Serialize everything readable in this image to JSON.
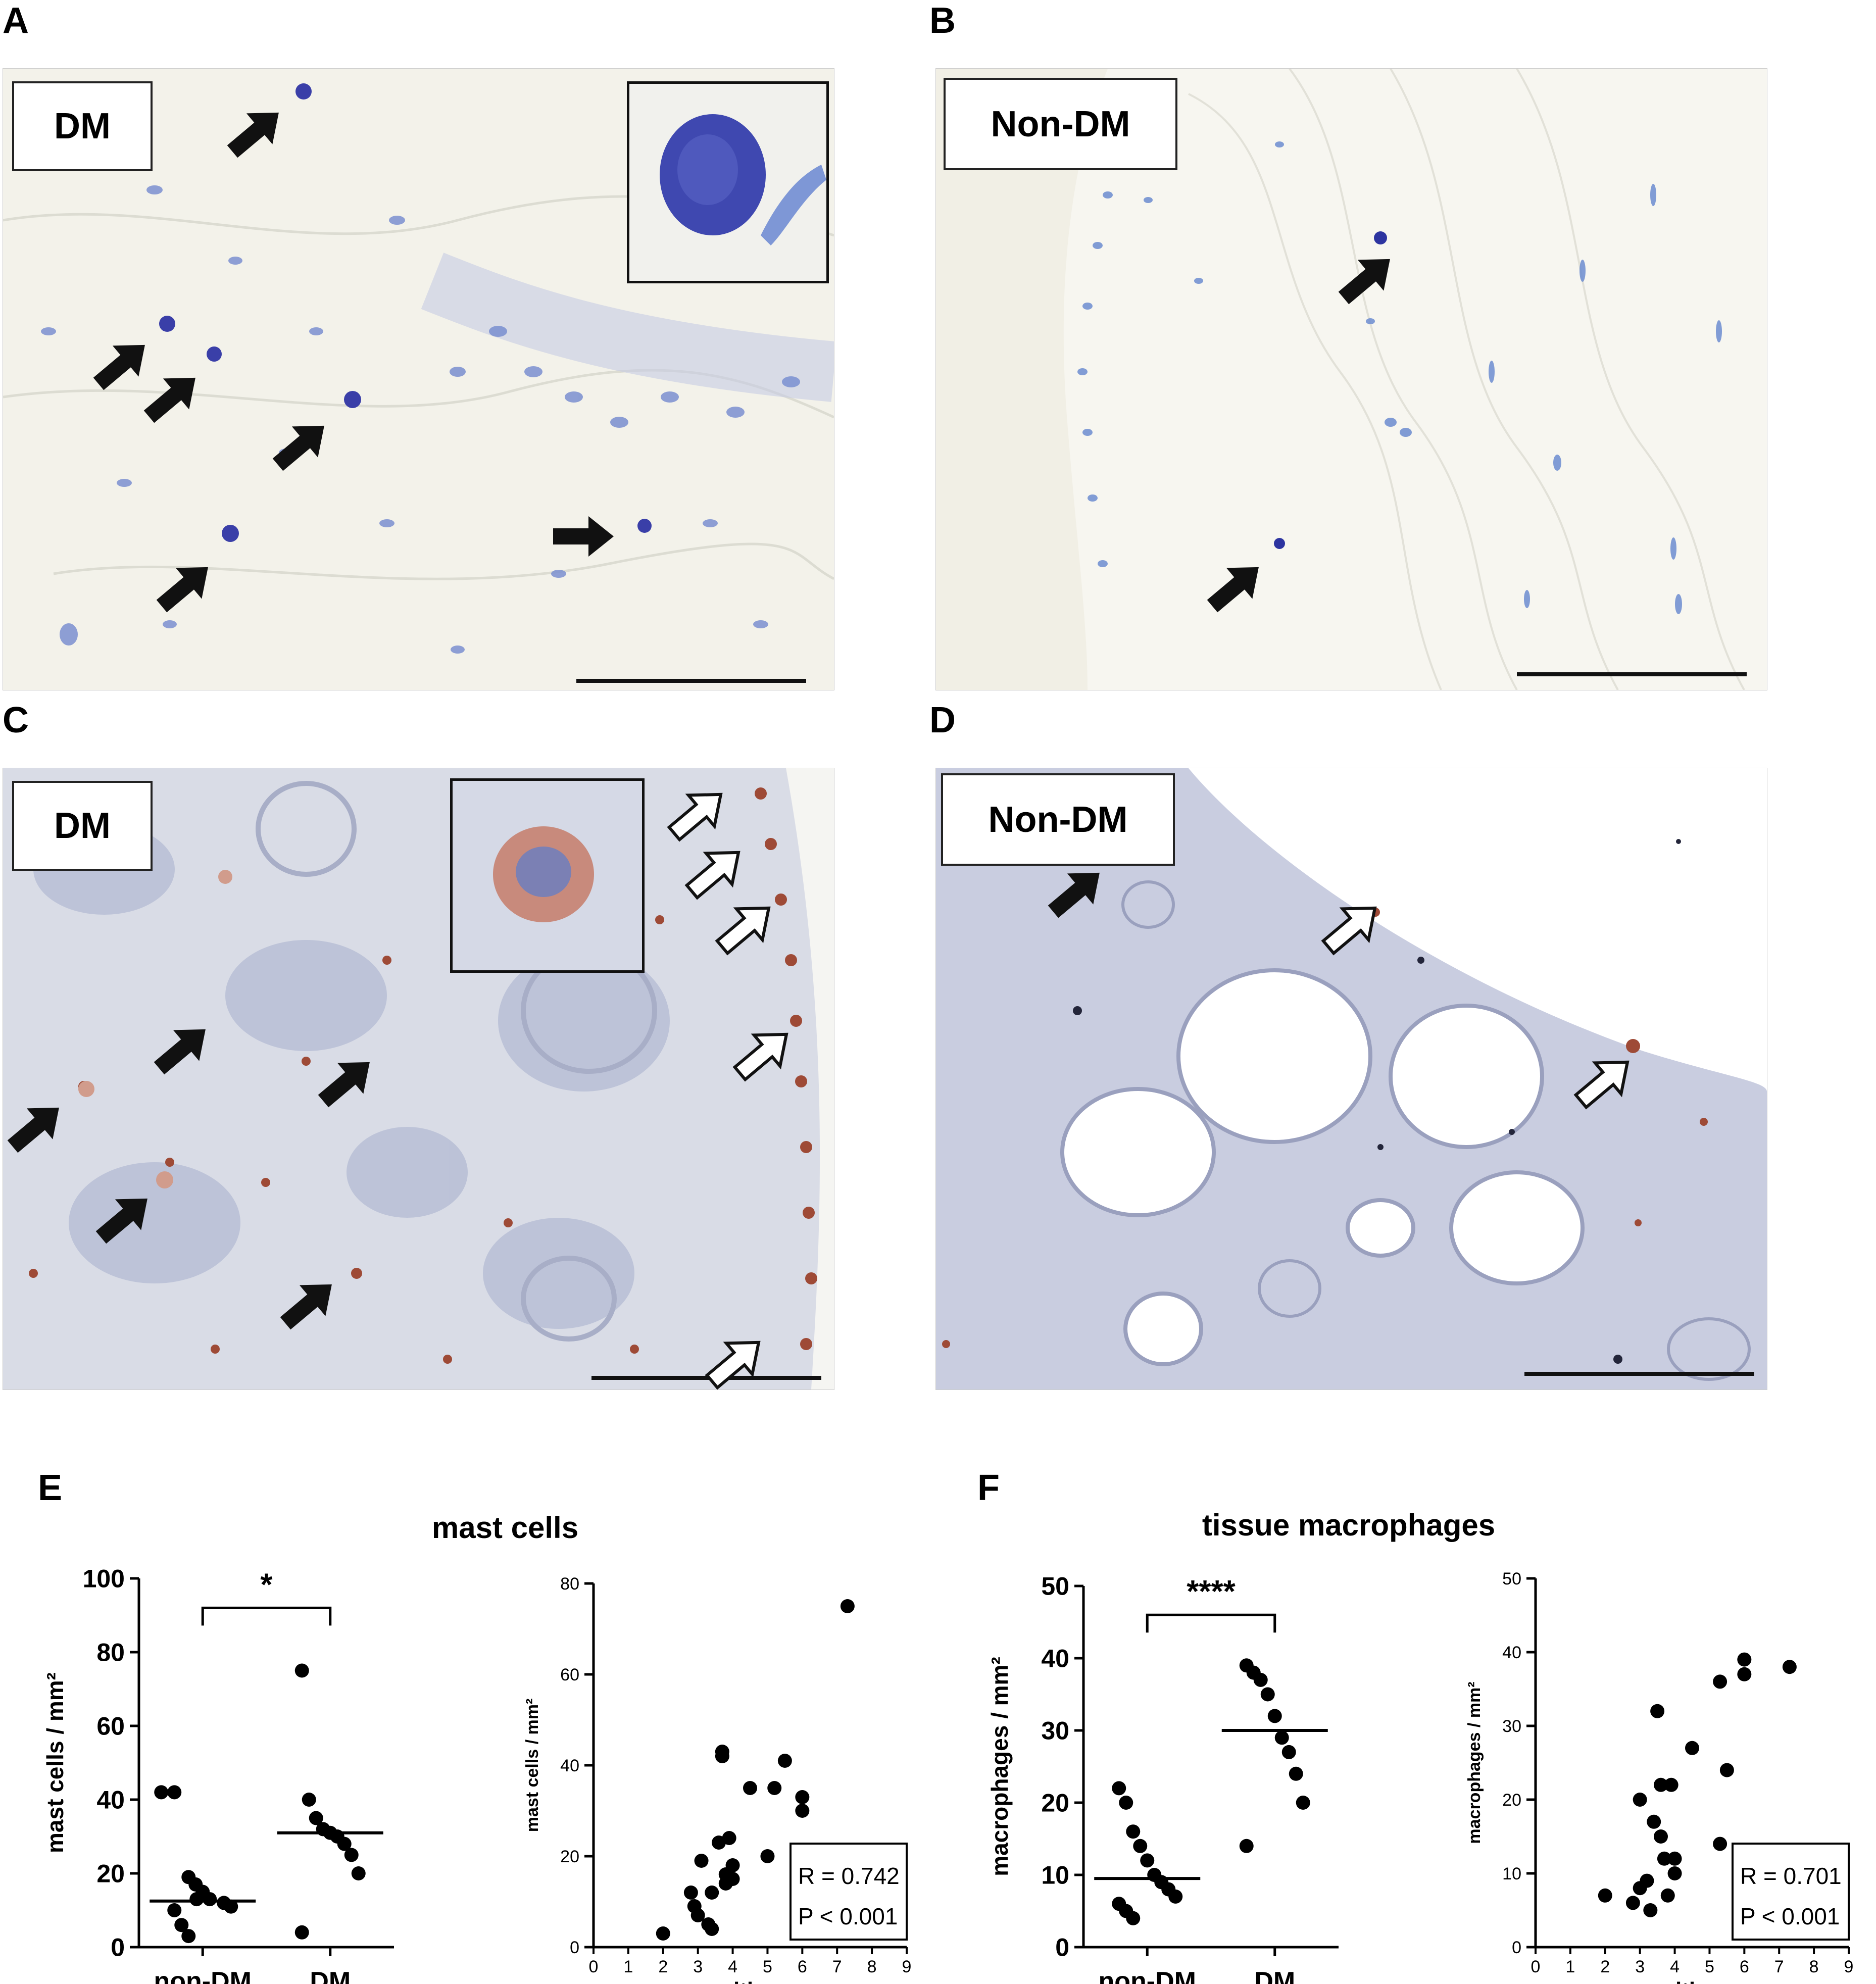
{
  "panels": {
    "A": {
      "letter": "A",
      "tag": "DM"
    },
    "B": {
      "letter": "B",
      "tag": "Non-DM"
    },
    "C": {
      "letter": "C",
      "tag": "DM"
    },
    "D": {
      "letter": "D",
      "tag": "Non-DM"
    },
    "E": {
      "letter": "E",
      "title": "mast cells"
    },
    "F": {
      "letter": "F",
      "title": "tissue macrophages"
    }
  },
  "colors": {
    "tissue_bg": "#f3f2ea",
    "nuclei": "#6f85c8",
    "mast_cell": "#3b3fa8",
    "macrophage_stain": "#a5492f",
    "tissue_ihc": "#cfd3e2"
  },
  "chart_data": [
    {
      "id": "E-left",
      "type": "scatter",
      "categories": [
        "non-DM",
        "DM"
      ],
      "ylabel": "mast cells / mm²",
      "ylim": [
        0,
        100
      ],
      "yticks": [
        0,
        20,
        40,
        60,
        80,
        100
      ],
      "groups": [
        {
          "category": "non-DM",
          "values": [
            42,
            42,
            19,
            17,
            15,
            13,
            13,
            12,
            11,
            10,
            6,
            3
          ],
          "median": 12.5
        },
        {
          "category": "DM",
          "values": [
            75,
            40,
            35,
            32,
            31,
            30,
            28,
            25,
            20,
            4
          ],
          "median": 31
        }
      ],
      "significance": "*"
    },
    {
      "id": "E-right",
      "type": "scatter",
      "xlabel": "synovitis score",
      "ylabel": "mast cells / mm²",
      "xlim": [
        0,
        9
      ],
      "xticks": [
        0,
        1,
        2,
        3,
        4,
        5,
        6,
        7,
        8,
        9
      ],
      "ylim": [
        0,
        80
      ],
      "yticks": [
        0,
        20,
        40,
        60,
        80
      ],
      "points": [
        [
          2,
          3
        ],
        [
          2.8,
          12
        ],
        [
          2.9,
          9
        ],
        [
          3,
          7
        ],
        [
          3.1,
          19
        ],
        [
          3.3,
          5
        ],
        [
          3.4,
          4
        ],
        [
          3.4,
          12
        ],
        [
          3.6,
          23
        ],
        [
          3.7,
          43
        ],
        [
          3.7,
          42
        ],
        [
          3.8,
          16
        ],
        [
          3.8,
          14
        ],
        [
          3.9,
          24
        ],
        [
          4,
          18
        ],
        [
          4,
          15
        ],
        [
          4.5,
          35
        ],
        [
          5,
          20
        ],
        [
          5.2,
          35
        ],
        [
          5.5,
          41
        ],
        [
          6,
          33
        ],
        [
          6,
          30
        ],
        [
          7.3,
          75
        ]
      ],
      "stats": {
        "r": "R = 0.742",
        "p": "P < 0.001"
      }
    },
    {
      "id": "F-left",
      "type": "scatter",
      "categories": [
        "non-DM",
        "DM"
      ],
      "ylabel": "macrophages / mm²",
      "ylim": [
        0,
        50
      ],
      "yticks": [
        0,
        10,
        20,
        30,
        40,
        50
      ],
      "groups": [
        {
          "category": "non-DM",
          "values": [
            22,
            20,
            16,
            14,
            12,
            10,
            9,
            8,
            7,
            6,
            5,
            4
          ],
          "median": 9.5
        },
        {
          "category": "DM",
          "values": [
            39,
            38,
            37,
            35,
            32,
            29,
            27,
            24,
            20,
            14
          ],
          "median": 30
        }
      ],
      "significance": "****"
    },
    {
      "id": "F-right",
      "type": "scatter",
      "xlabel": "synovitis score",
      "ylabel": "macrophages / mm²",
      "xlim": [
        0,
        9
      ],
      "xticks": [
        0,
        1,
        2,
        3,
        4,
        5,
        6,
        7,
        8,
        9
      ],
      "ylim": [
        0,
        50
      ],
      "yticks": [
        0,
        10,
        20,
        30,
        40,
        50
      ],
      "points": [
        [
          2,
          7
        ],
        [
          2.8,
          6
        ],
        [
          3,
          20
        ],
        [
          3,
          8
        ],
        [
          3.2,
          9
        ],
        [
          3.3,
          5
        ],
        [
          3.4,
          17
        ],
        [
          3.5,
          32
        ],
        [
          3.6,
          22
        ],
        [
          3.6,
          15
        ],
        [
          3.7,
          12
        ],
        [
          3.8,
          7
        ],
        [
          3.9,
          22
        ],
        [
          4,
          12
        ],
        [
          4,
          10
        ],
        [
          4.5,
          27
        ],
        [
          5.3,
          36
        ],
        [
          5.3,
          14
        ],
        [
          5.5,
          24
        ],
        [
          6,
          39
        ],
        [
          6,
          37
        ],
        [
          7.3,
          38
        ]
      ],
      "stats": {
        "r": "R = 0.701",
        "p": "P < 0.001"
      }
    }
  ]
}
